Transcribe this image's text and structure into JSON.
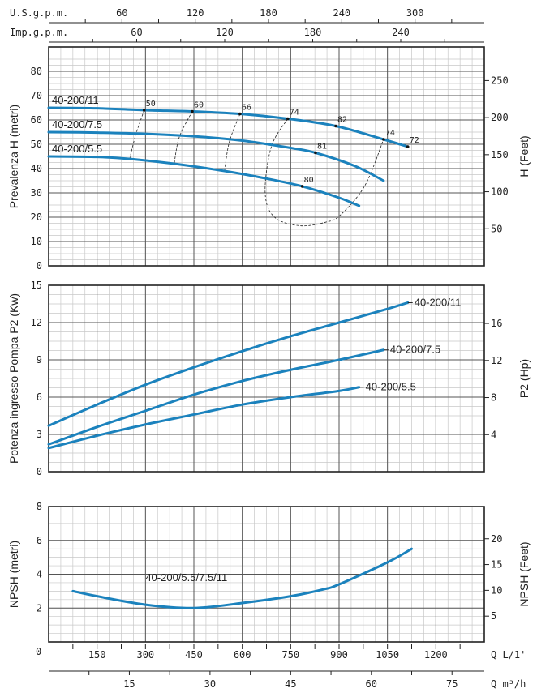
{
  "chart_data": [
    {
      "type": "line",
      "ylabel": "Prevalenza H (metri)",
      "y2label": "H (Feet)",
      "xlim": [
        0,
        1350
      ],
      "ylim": [
        0,
        90
      ],
      "yticks": [
        0,
        10,
        20,
        30,
        40,
        50,
        60,
        70,
        80
      ],
      "y2ticks": [
        50,
        100,
        150,
        200,
        250
      ],
      "top_axes": [
        {
          "label": "U.S.g.p.m.",
          "ticks": [
            60,
            120,
            180,
            240,
            300
          ],
          "factor": 3.785
        },
        {
          "label": "Imp.g.p.m.",
          "ticks": [
            60,
            120,
            180,
            240
          ],
          "factor": 4.546
        }
      ],
      "grid": true,
      "series": [
        {
          "name": "40-200/11",
          "x": [
            0,
            150,
            300,
            445,
            593,
            741,
            890,
            1038,
            1113
          ],
          "y": [
            65,
            64.8,
            64,
            63.5,
            62.5,
            60.5,
            57.5,
            52,
            49
          ]
        },
        {
          "name": "40-200/7.5",
          "x": [
            0,
            150,
            300,
            450,
            600,
            750,
            827,
            950,
            1038
          ],
          "y": [
            55,
            54.8,
            54.3,
            53.3,
            51.5,
            48.5,
            46.5,
            41,
            35
          ]
        },
        {
          "name": "40-200/5.5",
          "x": [
            0,
            150,
            250,
            389,
            545,
            671,
            786,
            900,
            962
          ],
          "y": [
            45,
            44.8,
            44,
            42,
            39,
            36,
            32.7,
            28,
            24.7
          ]
        }
      ],
      "efficiency_lines": [
        {
          "label": "50",
          "x": [
            296,
            270,
            251
          ],
          "y": [
            64,
            54,
            44
          ]
        },
        {
          "label": "60",
          "x": [
            445,
            405,
            389
          ],
          "y": [
            63.5,
            53,
            42
          ]
        },
        {
          "label": "66",
          "x": [
            593,
            560,
            545
          ],
          "y": [
            62.5,
            51,
            39
          ]
        },
        {
          "label": "74",
          "x": [
            741,
            690,
            671,
            700,
            779,
            860,
            905,
            980,
            1038
          ],
          "y": [
            60.5,
            49,
            30,
            20,
            16.5,
            18,
            21,
            33,
            52
          ]
        }
      ],
      "point_labels": [
        {
          "text": "50",
          "x": 296,
          "y": 64
        },
        {
          "text": "60",
          "x": 445,
          "y": 63.5
        },
        {
          "text": "66",
          "x": 593,
          "y": 62.5
        },
        {
          "text": "74",
          "x": 741,
          "y": 60.5
        },
        {
          "text": "82",
          "x": 890,
          "y": 57.5
        },
        {
          "text": "74",
          "x": 1038,
          "y": 52
        },
        {
          "text": "72",
          "x": 1113,
          "y": 49
        },
        {
          "text": "81",
          "x": 827,
          "y": 46.5
        },
        {
          "text": "80",
          "x": 786,
          "y": 32.7
        }
      ]
    },
    {
      "type": "line",
      "ylabel": "Potenza ingresso Pompa P2 (Kw)",
      "y2label": "P2 (Hp)",
      "xlim": [
        0,
        1350
      ],
      "ylim": [
        0,
        15
      ],
      "yticks": [
        0,
        3,
        6,
        9,
        12,
        15
      ],
      "y2ticks": [
        4,
        8,
        12,
        16
      ],
      "grid": true,
      "series": [
        {
          "name": "40-200/11",
          "x": [
            0,
            150,
            300,
            450,
            600,
            750,
            900,
            1050,
            1113
          ],
          "y": [
            3.7,
            5.4,
            7.0,
            8.4,
            9.7,
            10.9,
            12.0,
            13.1,
            13.6
          ]
        },
        {
          "name": "40-200/7.5",
          "x": [
            0,
            150,
            300,
            450,
            600,
            750,
            900,
            1038
          ],
          "y": [
            2.2,
            3.6,
            4.9,
            6.2,
            7.3,
            8.2,
            9.0,
            9.8
          ]
        },
        {
          "name": "40-200/5.5",
          "x": [
            0,
            150,
            300,
            450,
            600,
            750,
            900,
            962
          ],
          "y": [
            1.9,
            2.9,
            3.8,
            4.6,
            5.4,
            6.0,
            6.5,
            6.8
          ]
        }
      ]
    },
    {
      "type": "line",
      "ylabel": "NPSH (metri)",
      "y2label": "NPSH (Feet)",
      "xlim": [
        0,
        1350
      ],
      "ylim": [
        0,
        8
      ],
      "yticks": [
        2,
        4,
        6,
        8
      ],
      "y2ticks": [
        5,
        10,
        15,
        20
      ],
      "xticks": [
        150,
        300,
        450,
        600,
        750,
        900,
        1050,
        1200
      ],
      "xorigin_label": "0",
      "xlabel": "Q L/1'",
      "x2label": "Q m³/h",
      "x2ticks": [
        15,
        30,
        45,
        60,
        75
      ],
      "grid": true,
      "series": [
        {
          "name": "40-200/5.5/7.5/11",
          "x": [
            75,
            150,
            300,
            450,
            600,
            750,
            850,
            900,
            1050,
            1125
          ],
          "y": [
            3.0,
            2.7,
            2.2,
            2.0,
            2.3,
            2.7,
            3.1,
            3.4,
            4.7,
            5.5
          ]
        }
      ]
    }
  ],
  "colors": {
    "curve": "#1b82bd",
    "grid_major": "#555555",
    "grid_minor": "#c8c8c8",
    "frame": "#222222"
  }
}
